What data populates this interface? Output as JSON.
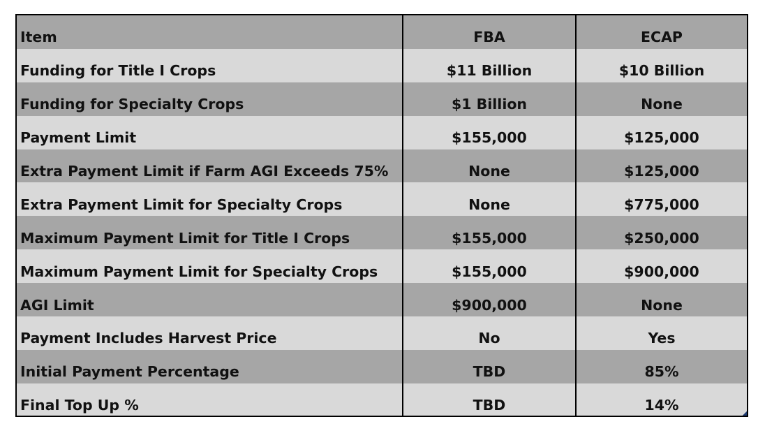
{
  "table": {
    "header": {
      "item": "Item",
      "fba": "FBA",
      "ecap": "ECAP"
    },
    "rows": [
      {
        "item": "Funding for Title I Crops",
        "fba": "$11 Billion",
        "ecap": "$10 Billion"
      },
      {
        "item": "Funding for Specialty Crops",
        "fba": "$1 Billion",
        "ecap": "None"
      },
      {
        "item": "Payment Limit",
        "fba": "$155,000",
        "ecap": "$125,000"
      },
      {
        "item": "Extra Payment Limit if Farm AGI Exceeds 75%",
        "fba": "None",
        "ecap": "$125,000"
      },
      {
        "item": "Extra Payment Limit for Specialty Crops",
        "fba": "None",
        "ecap": "$775,000"
      },
      {
        "item": "Maximum Payment Limit for Title I Crops",
        "fba": "$155,000",
        "ecap": "$250,000"
      },
      {
        "item": "Maximum Payment Limit for Specialty Crops",
        "fba": "$155,000",
        "ecap": "$900,000"
      },
      {
        "item": "AGI Limit",
        "fba": "$900,000",
        "ecap": "None"
      },
      {
        "item": "Payment Includes Harvest Price",
        "fba": "No",
        "ecap": "Yes"
      },
      {
        "item": "Initial Payment Percentage",
        "fba": "TBD",
        "ecap": "85%"
      },
      {
        "item": "Final Top Up %",
        "fba": "TBD",
        "ecap": "14%"
      }
    ]
  },
  "colors": {
    "row_dark": "#a6a6a6",
    "row_light": "#d9d9d9",
    "border": "#000000",
    "text": "#111111"
  }
}
